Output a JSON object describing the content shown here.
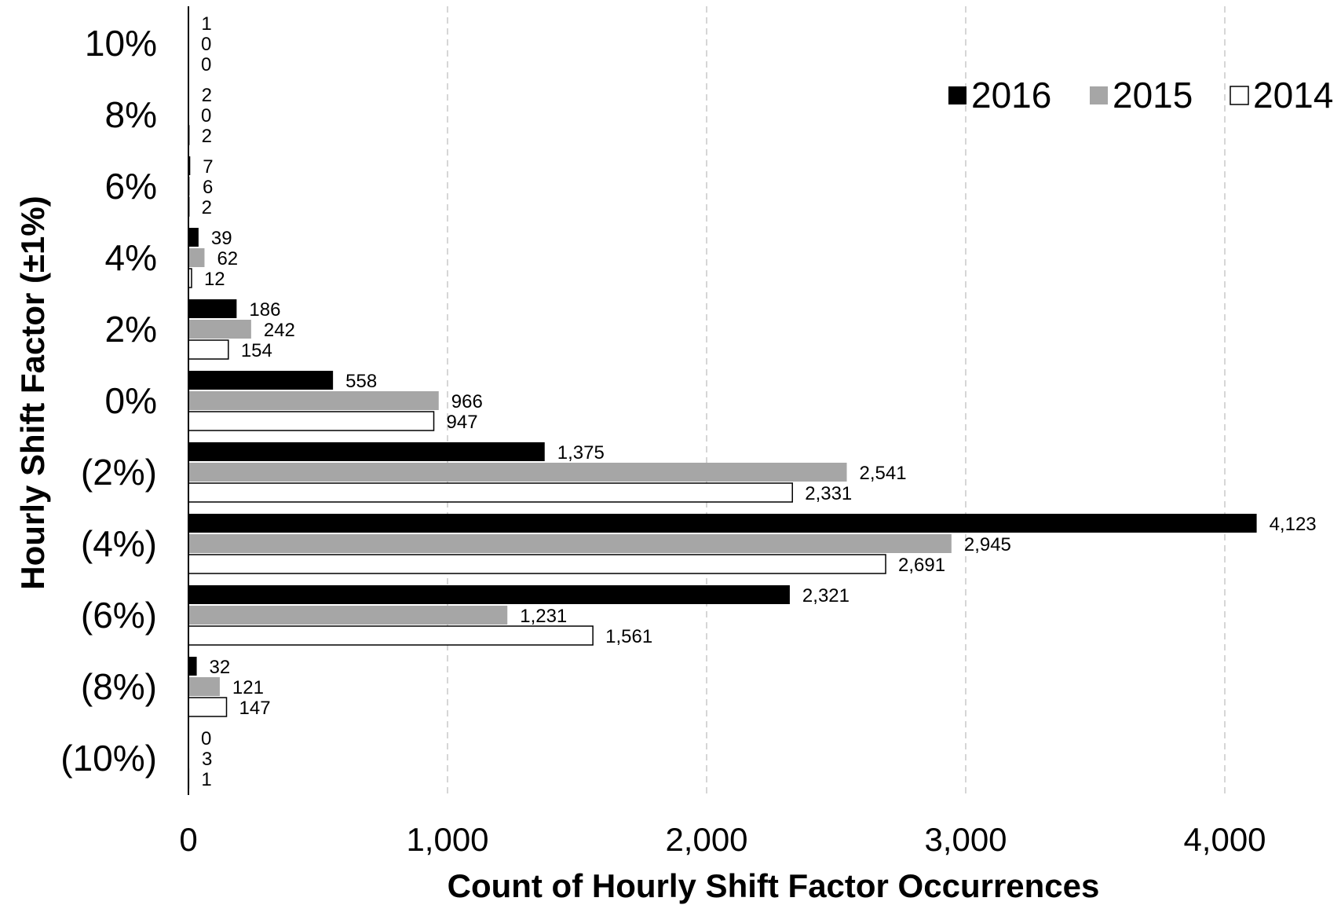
{
  "chart_data": {
    "type": "bar",
    "orientation": "horizontal",
    "title": "",
    "xlabel": "Count of Hourly Shift Factor Occurrences",
    "ylabel": "Hourly Shift Factor (±1%)",
    "xlim": [
      0,
      4000
    ],
    "x_ticks": [
      0,
      1000,
      2000,
      3000,
      4000
    ],
    "x_tick_labels": [
      "0",
      "1,000",
      "2,000",
      "3,000",
      "4,000"
    ],
    "grid": "vertical dashed",
    "legend_position": "top-right",
    "categories": [
      "10%",
      "8%",
      "6%",
      "4%",
      "2%",
      "0%",
      "(2%)",
      "(4%)",
      "(6%)",
      "(8%)",
      "(10%)"
    ],
    "series": [
      {
        "name": "2016",
        "color": "#000000",
        "values": [
          1,
          2,
          7,
          39,
          186,
          558,
          1375,
          4123,
          2321,
          32,
          0
        ],
        "labels": [
          "1",
          "2",
          "7",
          "39",
          "186",
          "558",
          "1,375",
          "4,123",
          "2,321",
          "32",
          "0"
        ]
      },
      {
        "name": "2015",
        "color": "#a6a6a6",
        "values": [
          0,
          0,
          6,
          62,
          242,
          966,
          2541,
          2945,
          1231,
          121,
          3
        ],
        "labels": [
          "0",
          "0",
          "6",
          "62",
          "242",
          "966",
          "2,541",
          "2,945",
          "1,231",
          "121",
          "3"
        ]
      },
      {
        "name": "2014",
        "color": "#ffffff",
        "values": [
          0,
          2,
          2,
          12,
          154,
          947,
          2331,
          2691,
          1561,
          147,
          1
        ],
        "labels": [
          "0",
          "2",
          "2",
          "12",
          "154",
          "947",
          "2,331",
          "2,691",
          "1,561",
          "147",
          "1"
        ]
      }
    ]
  }
}
